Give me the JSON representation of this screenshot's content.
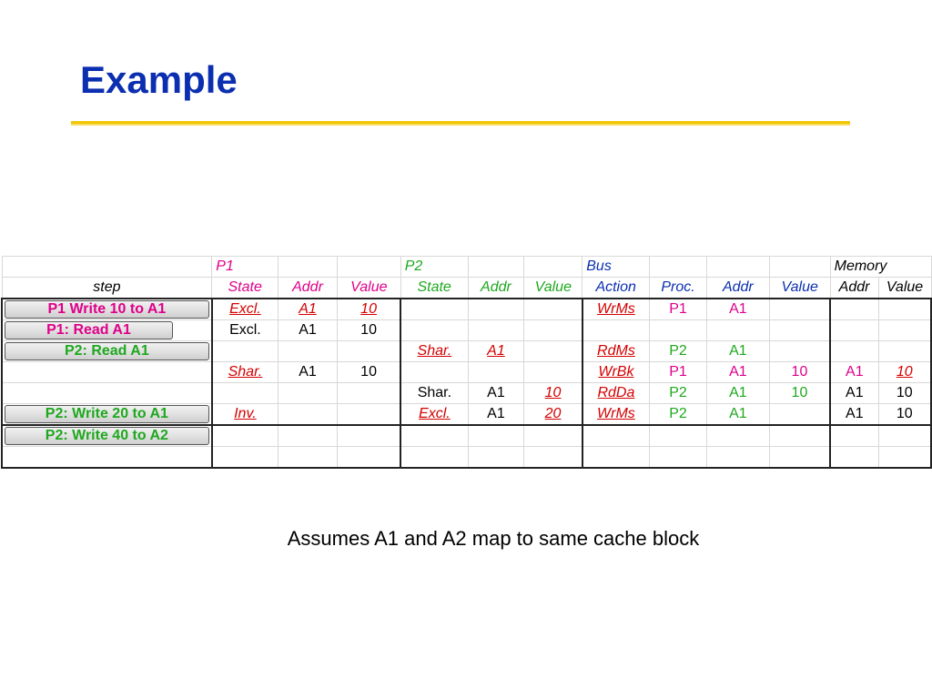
{
  "title": "Example",
  "footnote": "Assumes A1 and A2 map to same cache block",
  "groups": {
    "p1": "P1",
    "p2": "P2",
    "bus": "Bus",
    "memory": "Memory"
  },
  "headers": {
    "step": "step",
    "p1_state": "State",
    "p1_addr": "Addr",
    "p1_value": "Value",
    "p2_state": "State",
    "p2_addr": "Addr",
    "p2_value": "Value",
    "bus_action": "Action",
    "bus_proc": "Proc.",
    "bus_addr": "Addr",
    "bus_value": "Value",
    "mem_addr": "Addr",
    "mem_value": "Value"
  },
  "rows": [
    {
      "step": "P1 Write 10 to A1",
      "p1_state": "Excl.",
      "p1_addr": "A1",
      "p1_value": "10",
      "p2_state": "",
      "p2_addr": "",
      "p2_value": "",
      "bus_action": "WrMs",
      "bus_proc": "P1",
      "bus_addr": "A1",
      "bus_value": "",
      "mem_addr": "",
      "mem_value": ""
    },
    {
      "step": "P1: Read A1",
      "p1_state": "Excl.",
      "p1_addr": "A1",
      "p1_value": "10",
      "p2_state": "",
      "p2_addr": "",
      "p2_value": "",
      "bus_action": "",
      "bus_proc": "",
      "bus_addr": "",
      "bus_value": "",
      "mem_addr": "",
      "mem_value": ""
    },
    {
      "step": "P2: Read A1",
      "p1_state": "",
      "p1_addr": "",
      "p1_value": "",
      "p2_state": "Shar.",
      "p2_addr": "A1",
      "p2_value": "",
      "bus_action": "RdMs",
      "bus_proc": "P2",
      "bus_addr": "A1",
      "bus_value": "",
      "mem_addr": "",
      "mem_value": ""
    },
    {
      "step": "",
      "p1_state": "Shar.",
      "p1_addr": "A1",
      "p1_value": "10",
      "p2_state": "",
      "p2_addr": "",
      "p2_value": "",
      "bus_action": "WrBk",
      "bus_proc": "P1",
      "bus_addr": "A1",
      "bus_value": "10",
      "mem_addr": "A1",
      "mem_value": "10"
    },
    {
      "step": "",
      "p1_state": "",
      "p1_addr": "",
      "p1_value": "",
      "p2_state": "Shar.",
      "p2_addr": "A1",
      "p2_value": "10",
      "bus_action": "RdDa",
      "bus_proc": "P2",
      "bus_addr": "A1",
      "bus_value": "10",
      "mem_addr": "A1",
      "mem_value": "10"
    },
    {
      "step": "P2: Write 20 to A1",
      "p1_state": "Inv.",
      "p1_addr": "",
      "p1_value": "",
      "p2_state": "Excl.",
      "p2_addr": "A1",
      "p2_value": "20",
      "bus_action": "WrMs",
      "bus_proc": "P2",
      "bus_addr": "A1",
      "bus_value": "",
      "mem_addr": "A1",
      "mem_value": "10"
    },
    {
      "step": "P2: Write 40 to A2",
      "p1_state": "",
      "p1_addr": "",
      "p1_value": "",
      "p2_state": "",
      "p2_addr": "",
      "p2_value": "",
      "bus_action": "",
      "bus_proc": "",
      "bus_addr": "",
      "bus_value": "",
      "mem_addr": "",
      "mem_value": ""
    },
    {
      "step": "",
      "p1_state": "",
      "p1_addr": "",
      "p1_value": "",
      "p2_state": "",
      "p2_addr": "",
      "p2_value": "",
      "bus_action": "",
      "bus_proc": "",
      "bus_addr": "",
      "bus_value": "",
      "mem_addr": "",
      "mem_value": ""
    }
  ],
  "colors": {
    "title": "#0b2fb0",
    "rule": "#f2c500",
    "p1": "#e0008a",
    "p2": "#1fa81f",
    "bus": "#0b2fb0",
    "highlight": "#d40000"
  }
}
